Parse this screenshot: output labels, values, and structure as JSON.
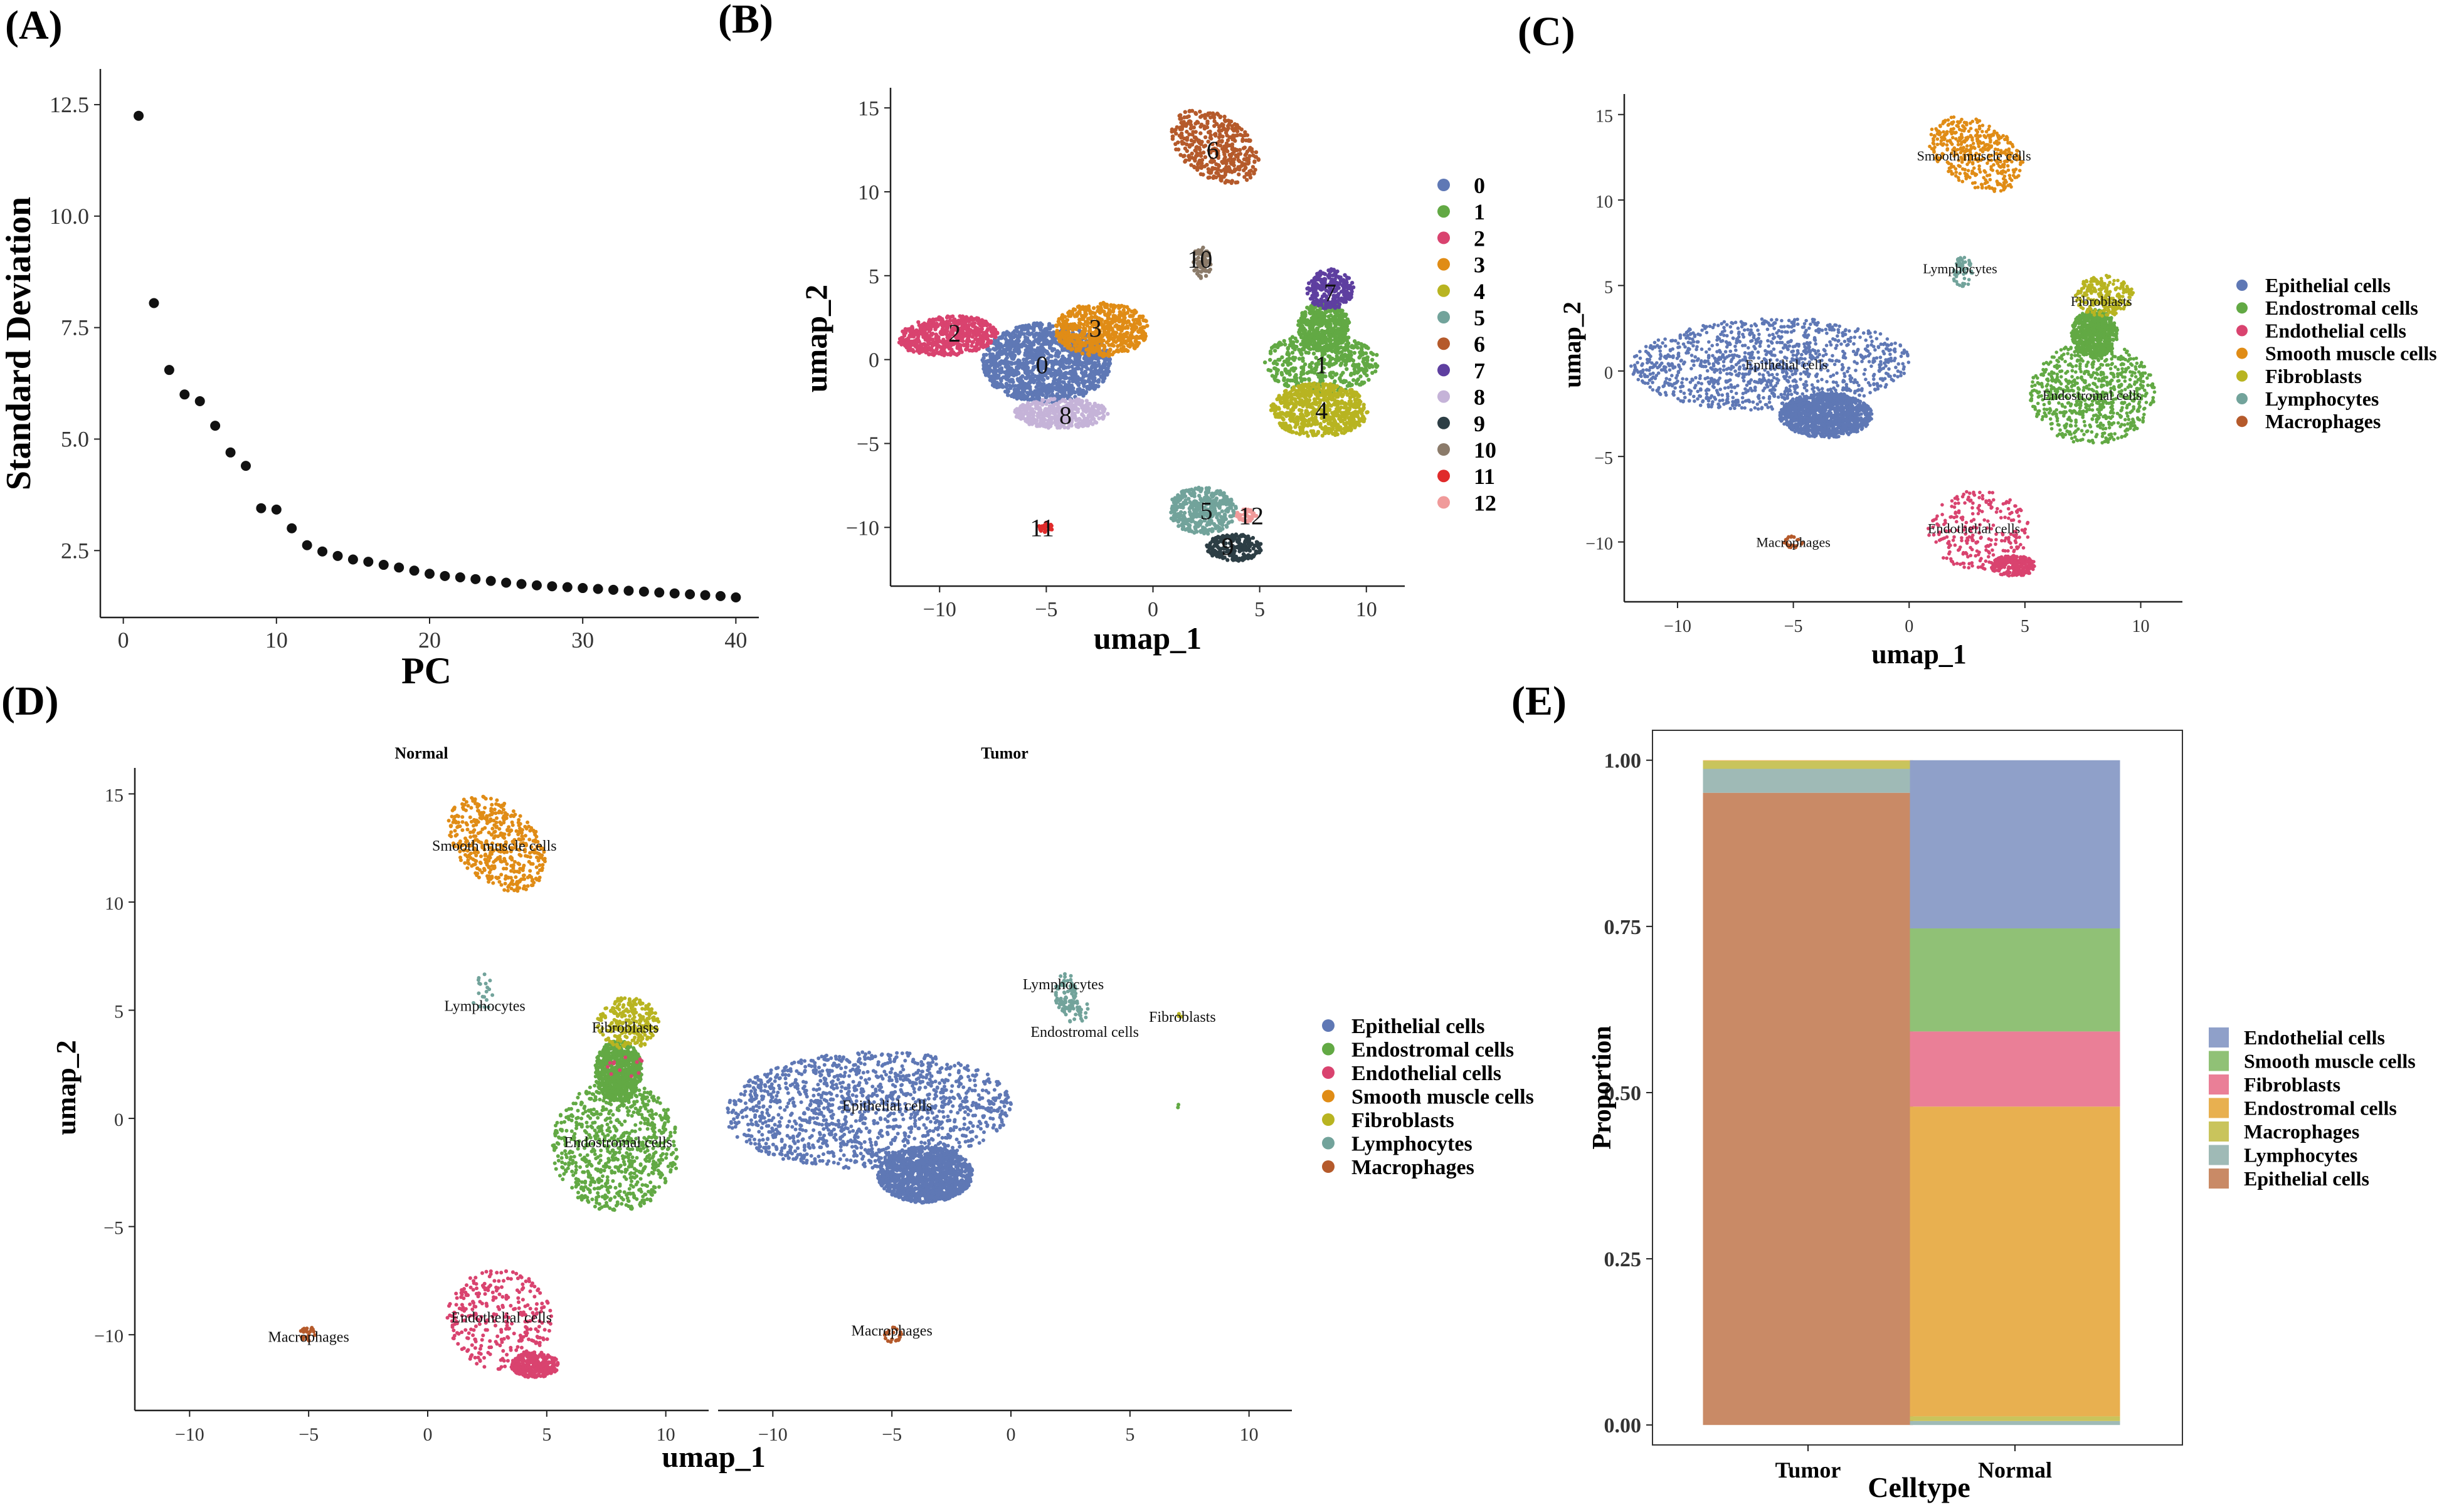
{
  "panel_labels": [
    "(A)",
    "(B)",
    "(C)",
    "(D)",
    "(E)"
  ],
  "colors": {
    "cluster": [
      "#5f78b5",
      "#62a944",
      "#d9436f",
      "#e08c16",
      "#b8b421",
      "#72a39b",
      "#b55a2b",
      "#5e3fa0",
      "#c5b3d8",
      "#2d3e45",
      "#8b7b6a",
      "#e02b2b",
      "#f09a9a"
    ],
    "celltype": {
      "Epithelial cells": "#5f78b5",
      "Endostromal cells": "#62a944",
      "Endothelial cells": "#d9436f",
      "Smooth muscle cells": "#e08c16",
      "Fibroblasts": "#b8b421",
      "Lymphocytes": "#72a39b",
      "Macrophages": "#b55a2b"
    },
    "bar": {
      "Endothelial cells": "#8fa0c9",
      "Smooth muscle cells": "#90c176",
      "Fibroblasts": "#ea7f97",
      "Endostromal cells": "#e8b050",
      "Macrophages": "#c9c45c",
      "Lymphocytes": "#9fbab6",
      "Epithelial cells": "#c98a66"
    }
  },
  "chart_data": [
    {
      "id": "A",
      "type": "scatter",
      "title": "",
      "xlabel": "PC",
      "ylabel": "Standard Deviation",
      "xlim": [
        -1.5,
        41.5
      ],
      "ylim": [
        1.0,
        13.3
      ],
      "xticks": [
        0,
        10,
        20,
        30,
        40
      ],
      "yticks": [
        2.5,
        5.0,
        7.5,
        10.0,
        12.5
      ],
      "ytick_labels": [
        "2.5",
        "5.0",
        "7.5",
        "10.0",
        "12.5"
      ],
      "x": [
        1,
        2,
        3,
        4,
        5,
        6,
        7,
        8,
        9,
        10,
        11,
        12,
        13,
        14,
        15,
        16,
        17,
        18,
        19,
        20,
        21,
        22,
        23,
        24,
        25,
        26,
        27,
        28,
        29,
        30,
        31,
        32,
        33,
        34,
        35,
        36,
        37,
        38,
        39,
        40
      ],
      "y": [
        12.25,
        8.05,
        6.55,
        6.0,
        5.85,
        5.3,
        4.7,
        4.4,
        3.45,
        3.42,
        3.0,
        2.62,
        2.48,
        2.38,
        2.3,
        2.25,
        2.18,
        2.12,
        2.05,
        1.98,
        1.93,
        1.9,
        1.86,
        1.82,
        1.78,
        1.75,
        1.72,
        1.7,
        1.68,
        1.66,
        1.64,
        1.62,
        1.6,
        1.58,
        1.56,
        1.54,
        1.52,
        1.5,
        1.48,
        1.45
      ]
    },
    {
      "id": "B",
      "type": "scatter",
      "xlabel": "umap_1",
      "ylabel": "umap_2",
      "xlim": [
        -12.3,
        11.8
      ],
      "ylim": [
        -13.5,
        16.2
      ],
      "xticks": [
        -10,
        -5,
        0,
        5,
        10
      ],
      "yticks": [
        -10,
        -5,
        0,
        5,
        10,
        15
      ],
      "legend": [
        "0",
        "1",
        "2",
        "3",
        "4",
        "5",
        "6",
        "7",
        "8",
        "9",
        "10",
        "11",
        "12"
      ],
      "cluster_labels": [
        {
          "text": "0",
          "x": -5.2,
          "y": -0.3
        },
        {
          "text": "1",
          "x": 7.9,
          "y": -0.3
        },
        {
          "text": "2",
          "x": -9.3,
          "y": 1.6
        },
        {
          "text": "3",
          "x": -2.7,
          "y": 1.9
        },
        {
          "text": "4",
          "x": 7.9,
          "y": -3.0
        },
        {
          "text": "5",
          "x": 2.5,
          "y": -9.0
        },
        {
          "text": "6",
          "x": 2.8,
          "y": 12.5
        },
        {
          "text": "7",
          "x": 8.3,
          "y": 4.0
        },
        {
          "text": "8",
          "x": -4.1,
          "y": -3.3
        },
        {
          "text": "9",
          "x": 3.5,
          "y": -11.1
        },
        {
          "text": "10",
          "x": 2.2,
          "y": 6.0
        },
        {
          "text": "11",
          "x": -5.2,
          "y": -10.0
        },
        {
          "text": "12",
          "x": 4.6,
          "y": -9.3
        }
      ]
    },
    {
      "id": "C",
      "type": "scatter",
      "xlabel": "umap_1",
      "ylabel": "umap_2",
      "xlim": [
        -12.3,
        11.8
      ],
      "ylim": [
        -13.5,
        16.2
      ],
      "xticks": [
        -10,
        -5,
        0,
        5,
        10
      ],
      "yticks": [
        -10,
        -5,
        0,
        5,
        10,
        15
      ],
      "legend": [
        "Epithelial cells",
        "Endostromal cells",
        "Endothelial cells",
        "Smooth muscle cells",
        "Fibroblasts",
        "Lymphocytes",
        "Macrophages"
      ],
      "annotations": [
        {
          "text": "Smooth muscle cells",
          "x": 2.8,
          "y": 12.6
        },
        {
          "text": "Lymphocytes",
          "x": 2.2,
          "y": 6.0
        },
        {
          "text": "Fibroblasts",
          "x": 8.3,
          "y": 4.1
        },
        {
          "text": "Epithelial cells",
          "x": -5.3,
          "y": 0.4
        },
        {
          "text": "Endostromal cells",
          "x": 7.9,
          "y": -1.4
        },
        {
          "text": "Endothelial cells",
          "x": 2.8,
          "y": -9.2
        },
        {
          "text": "Macrophages",
          "x": -5.0,
          "y": -10.0
        }
      ]
    },
    {
      "id": "D",
      "type": "scatter",
      "xlabel": "umap_1",
      "ylabel": "umap_2",
      "facets": [
        "Normal",
        "Tumor"
      ],
      "xlim": [
        -12.3,
        11.8
      ],
      "ylim": [
        -13.5,
        16.2
      ],
      "xticks": [
        -10,
        -5,
        0,
        5,
        10
      ],
      "yticks": [
        -10,
        -5,
        0,
        5,
        10,
        15
      ],
      "legend": [
        "Epithelial cells",
        "Endostromal cells",
        "Endothelial cells",
        "Smooth muscle cells",
        "Fibroblasts",
        "Lymphocytes",
        "Macrophages"
      ],
      "annotations_normal": [
        {
          "text": "Smooth muscle cells",
          "x": 2.8,
          "y": 12.6
        },
        {
          "text": "Lymphocytes",
          "x": 2.4,
          "y": 5.2
        },
        {
          "text": "Fibroblasts",
          "x": 8.3,
          "y": 4.2
        },
        {
          "text": "Endostromal cells",
          "x": 8.0,
          "y": -1.1
        },
        {
          "text": "Endothelial cells",
          "x": 3.1,
          "y": -9.2
        },
        {
          "text": "Macrophages",
          "x": -5.0,
          "y": -10.1
        }
      ],
      "annotations_tumor": [
        {
          "text": "Lymphocytes",
          "x": 2.2,
          "y": 6.2
        },
        {
          "text": "Fibroblasts",
          "x": 7.2,
          "y": 4.7
        },
        {
          "text": "Endostromal cells",
          "x": 3.1,
          "y": 4.0
        },
        {
          "text": "Epithelial cells",
          "x": -5.2,
          "y": 0.6
        },
        {
          "text": "Macrophages",
          "x": -5.0,
          "y": -9.8
        }
      ]
    },
    {
      "id": "E",
      "type": "bar",
      "stacked": true,
      "xlabel": "Celltype",
      "ylabel": "Proportion",
      "categories": [
        "Tumor",
        "Normal"
      ],
      "ylim": [
        -0.03,
        1.045
      ],
      "yticks": [
        0.0,
        0.25,
        0.5,
        0.75,
        1.0
      ],
      "ytick_labels": [
        "0.00",
        "0.25",
        "0.50",
        "0.75",
        "1.00"
      ],
      "legend": [
        "Endothelial cells",
        "Smooth muscle cells",
        "Fibroblasts",
        "Endostromal cells",
        "Macrophages",
        "Lymphocytes",
        "Epithelial cells"
      ],
      "series": [
        {
          "name": "Epithelial cells",
          "values": [
            0.951,
            0.0
          ]
        },
        {
          "name": "Lymphocytes",
          "values": [
            0.036,
            0.006
          ]
        },
        {
          "name": "Macrophages",
          "values": [
            0.012,
            0.007
          ]
        },
        {
          "name": "Endostromal cells",
          "values": [
            0.001,
            0.466
          ]
        },
        {
          "name": "Fibroblasts",
          "values": [
            0.0,
            0.113
          ]
        },
        {
          "name": "Smooth muscle cells",
          "values": [
            0.0,
            0.155
          ]
        },
        {
          "name": "Endothelial cells",
          "values": [
            0.0,
            0.253
          ]
        }
      ]
    }
  ]
}
